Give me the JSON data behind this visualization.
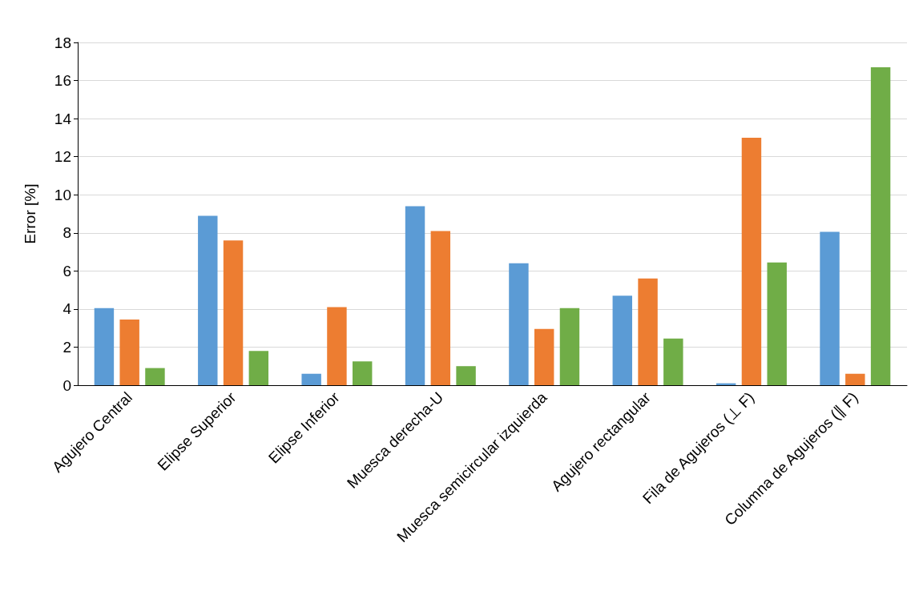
{
  "chart_data": {
    "type": "bar",
    "ylabel": "Error [%]",
    "categories": [
      "Agujero Central",
      "Elipse Superior",
      "Elipse Inferior",
      "Muesca derecha-U",
      "Muesca semicircular izquierda",
      "Agujero rectangular",
      "Fila de Agujeros (⊥ F)",
      "Columna de Agujeros (∥ F)"
    ],
    "series": [
      {
        "color": "#5b9bd5",
        "values": [
          4.05,
          8.9,
          0.6,
          9.4,
          6.4,
          4.7,
          0.1,
          8.05
        ]
      },
      {
        "color": "#ed7d31",
        "values": [
          3.45,
          7.6,
          4.1,
          8.1,
          2.95,
          5.6,
          13.0,
          0.6
        ]
      },
      {
        "color": "#70ad47",
        "values": [
          0.9,
          1.8,
          1.25,
          1.0,
          4.05,
          2.45,
          6.45,
          16.7
        ]
      }
    ],
    "ylim": [
      0,
      18
    ],
    "yticks": [
      0,
      2,
      4,
      6,
      8,
      10,
      12,
      14,
      16,
      18
    ],
    "grid": "y"
  }
}
